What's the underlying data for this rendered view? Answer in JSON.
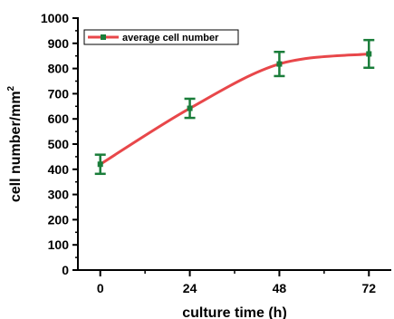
{
  "chart_data": {
    "type": "line",
    "xlabel": "culture time (h)",
    "ylabel": "cell number/mm",
    "ylabel_superscript": "2",
    "x_ticks": [
      "0",
      "24",
      "48",
      "72"
    ],
    "y_ticks": [
      "0",
      "100",
      "200",
      "300",
      "400",
      "500",
      "600",
      "700",
      "800",
      "900",
      "1000"
    ],
    "xlim": [
      -6,
      78
    ],
    "ylim": [
      0,
      1000
    ],
    "legend_position": "top-left",
    "series": [
      {
        "name": "average cell number",
        "line_color": "#e8474a",
        "marker_color": "#1a7d3a",
        "x": [
          0,
          24,
          48,
          72
        ],
        "y": [
          420,
          642,
          818,
          858
        ],
        "error": [
          38,
          38,
          48,
          55
        ]
      }
    ]
  }
}
